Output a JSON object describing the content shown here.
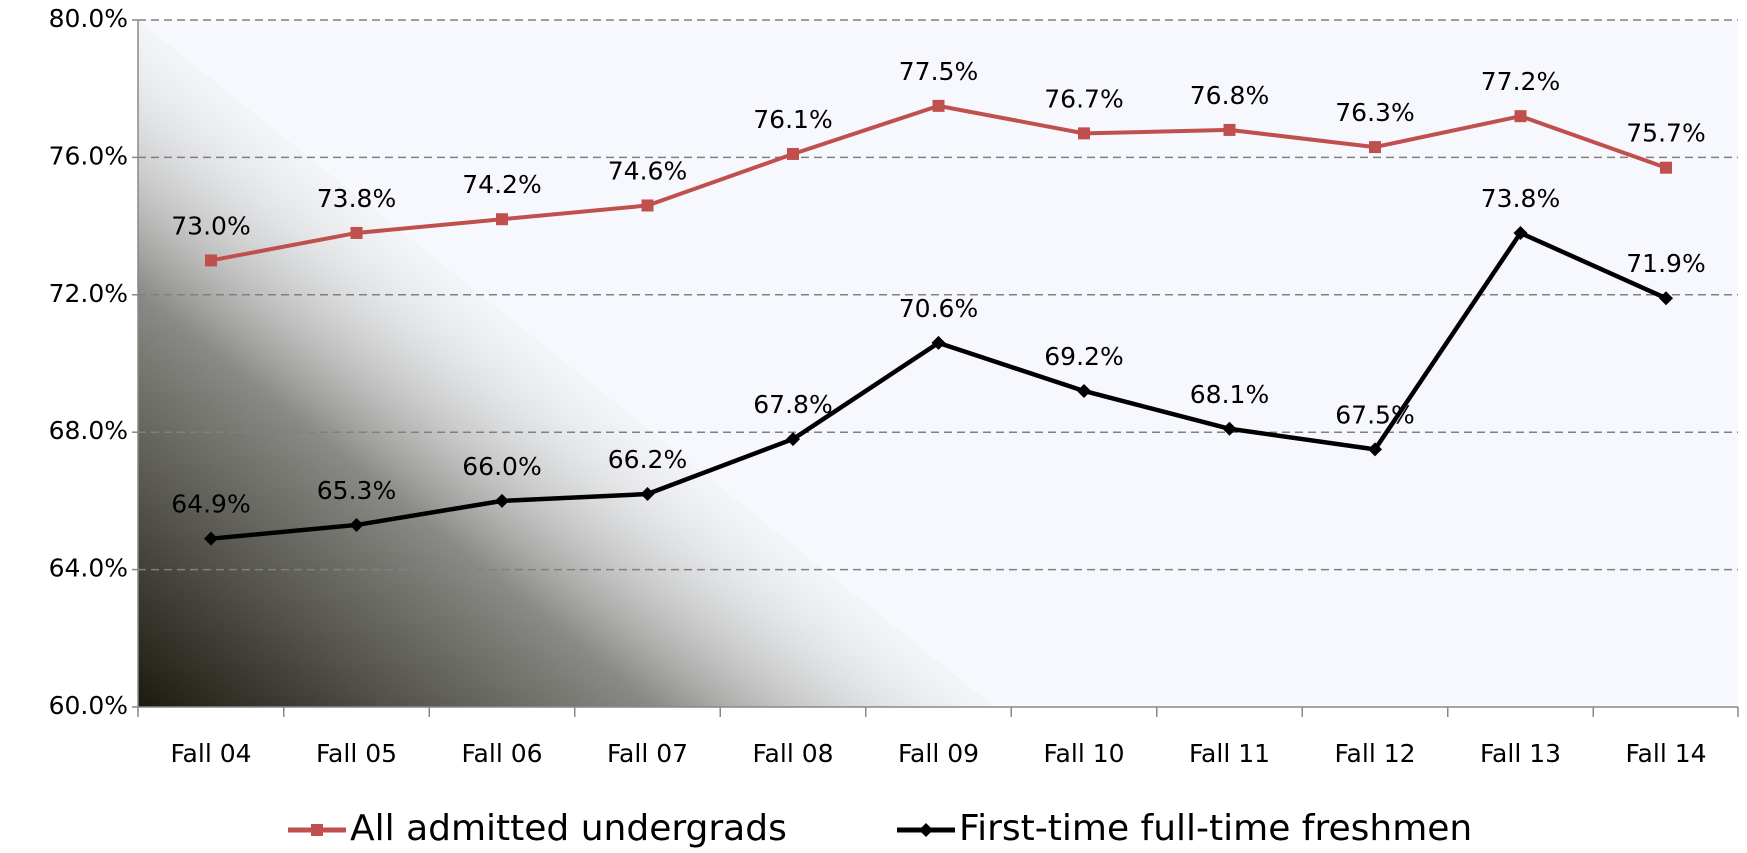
{
  "chart_data": {
    "type": "line",
    "categories": [
      "Fall 04",
      "Fall 05",
      "Fall 06",
      "Fall 07",
      "Fall 08",
      "Fall 09",
      "Fall 10",
      "Fall 11",
      "Fall 12",
      "Fall 13",
      "Fall 14"
    ],
    "series": [
      {
        "name": "All admitted undergrads",
        "color": "#c0504d",
        "marker": "square",
        "values": [
          73.0,
          73.8,
          74.2,
          74.6,
          76.1,
          77.5,
          76.7,
          76.8,
          76.3,
          77.2,
          75.7
        ],
        "value_labels": [
          "73.0%",
          "73.8%",
          "74.2%",
          "74.6%",
          "76.1%",
          "77.5%",
          "76.7%",
          "76.8%",
          "76.3%",
          "77.2%",
          "75.7%"
        ]
      },
      {
        "name": "First-time full-time freshmen",
        "color": "#000000",
        "marker": "diamond",
        "values": [
          64.9,
          65.3,
          66.0,
          66.2,
          67.8,
          70.6,
          69.2,
          68.1,
          67.5,
          73.8,
          71.9
        ],
        "value_labels": [
          "64.9%",
          "65.3%",
          "66.0%",
          "66.2%",
          "67.8%",
          "70.6%",
          "69.2%",
          "68.1%",
          "67.5%",
          "73.8%",
          "71.9%"
        ]
      }
    ],
    "ylim": [
      60,
      80
    ],
    "yticks": [
      {
        "value": 60,
        "label": "60.0%"
      },
      {
        "value": 64,
        "label": "64.0%"
      },
      {
        "value": 68,
        "label": "68.0%"
      },
      {
        "value": 72,
        "label": "72.0%"
      },
      {
        "value": 76,
        "label": "76.0%"
      },
      {
        "value": 80,
        "label": "80.0%"
      }
    ],
    "grid": true,
    "legend": "bottom"
  }
}
